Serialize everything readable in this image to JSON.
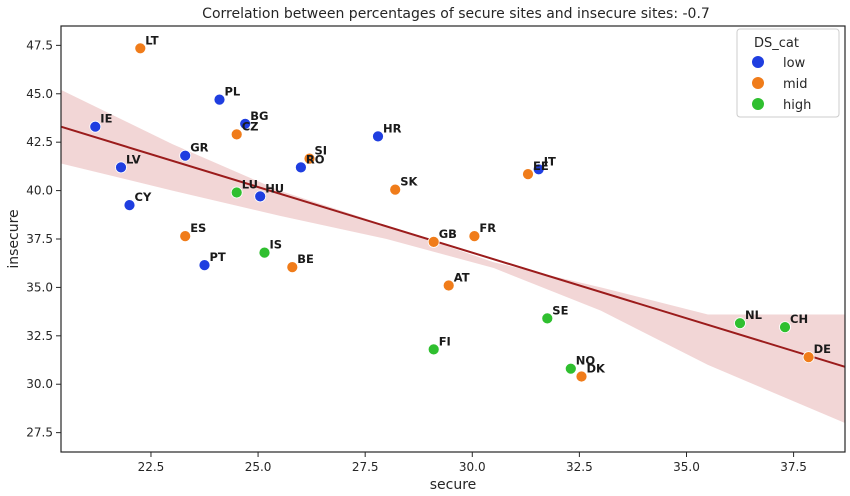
{
  "chart_data": {
    "type": "scatter",
    "title": "Correlation between percentages of secure sites and insecure sites: -0.7",
    "xlabel": "secure",
    "ylabel": "insecure",
    "xlim": [
      20.4,
      38.7
    ],
    "ylim": [
      26.5,
      48.5
    ],
    "xticks": [
      22.5,
      25.0,
      27.5,
      30.0,
      32.5,
      35.0,
      37.5
    ],
    "xtick_labels": [
      "22.5",
      "25.0",
      "27.5",
      "30.0",
      "32.5",
      "35.0",
      "37.5"
    ],
    "yticks": [
      27.5,
      30.0,
      32.5,
      35.0,
      37.5,
      40.0,
      42.5,
      45.0,
      47.5
    ],
    "ytick_labels": [
      "27.5",
      "30.0",
      "32.5",
      "35.0",
      "37.5",
      "40.0",
      "42.5",
      "45.0",
      "47.5"
    ],
    "legend": {
      "title": "DS_cat",
      "position": "top-right",
      "entries": [
        {
          "label": "low",
          "color": "#1f3ee0"
        },
        {
          "label": "mid",
          "color": "#f07c1a"
        },
        {
          "label": "high",
          "color": "#2fbf2f"
        }
      ]
    },
    "regression": {
      "line": [
        [
          20.4,
          43.3
        ],
        [
          38.7,
          30.9
        ]
      ],
      "ci_band": {
        "x": [
          20.4,
          23.0,
          25.5,
          28.0,
          30.5,
          33.0,
          35.5,
          38.7
        ],
        "upper": [
          45.2,
          42.4,
          40.0,
          38.2,
          36.3,
          35.0,
          33.6,
          33.6
        ],
        "lower": [
          41.4,
          40.0,
          38.7,
          37.5,
          36.0,
          33.8,
          31.0,
          28.0
        ]
      },
      "line_color": "#9b1c1c",
      "band_color": "#e8b5b5"
    },
    "points": [
      {
        "label": "LT",
        "x": 22.25,
        "y": 47.35,
        "cat": "mid"
      },
      {
        "label": "PL",
        "x": 24.1,
        "y": 44.7,
        "cat": "low"
      },
      {
        "label": "IE",
        "x": 21.2,
        "y": 43.3,
        "cat": "low"
      },
      {
        "label": "BG",
        "x": 24.7,
        "y": 43.45,
        "cat": "low"
      },
      {
        "label": "CZ",
        "x": 24.5,
        "y": 42.9,
        "cat": "mid"
      },
      {
        "label": "HR",
        "x": 27.8,
        "y": 42.8,
        "cat": "low"
      },
      {
        "label": "GR",
        "x": 23.3,
        "y": 41.8,
        "cat": "low"
      },
      {
        "label": "SI",
        "x": 26.2,
        "y": 41.65,
        "cat": "mid"
      },
      {
        "label": "RO",
        "x": 26.0,
        "y": 41.2,
        "cat": "low"
      },
      {
        "label": "LV",
        "x": 21.8,
        "y": 41.2,
        "cat": "low"
      },
      {
        "label": "IT",
        "x": 31.55,
        "y": 41.1,
        "cat": "low"
      },
      {
        "label": "EE",
        "x": 31.3,
        "y": 40.85,
        "cat": "mid"
      },
      {
        "label": "SK",
        "x": 28.2,
        "y": 40.05,
        "cat": "mid"
      },
      {
        "label": "LU",
        "x": 24.5,
        "y": 39.9,
        "cat": "high"
      },
      {
        "label": "HU",
        "x": 25.05,
        "y": 39.7,
        "cat": "low"
      },
      {
        "label": "CY",
        "x": 22.0,
        "y": 39.25,
        "cat": "low"
      },
      {
        "label": "ES",
        "x": 23.3,
        "y": 37.65,
        "cat": "mid"
      },
      {
        "label": "FR",
        "x": 30.05,
        "y": 37.65,
        "cat": "mid"
      },
      {
        "label": "GB",
        "x": 29.1,
        "y": 37.35,
        "cat": "mid"
      },
      {
        "label": "IS",
        "x": 25.15,
        "y": 36.8,
        "cat": "high"
      },
      {
        "label": "PT",
        "x": 23.75,
        "y": 36.15,
        "cat": "low"
      },
      {
        "label": "BE",
        "x": 25.8,
        "y": 36.05,
        "cat": "mid"
      },
      {
        "label": "AT",
        "x": 29.45,
        "y": 35.1,
        "cat": "mid"
      },
      {
        "label": "SE",
        "x": 31.75,
        "y": 33.4,
        "cat": "high"
      },
      {
        "label": "NL",
        "x": 36.25,
        "y": 33.15,
        "cat": "high"
      },
      {
        "label": "CH",
        "x": 37.3,
        "y": 32.95,
        "cat": "high"
      },
      {
        "label": "FI",
        "x": 29.1,
        "y": 31.8,
        "cat": "high"
      },
      {
        "label": "DE",
        "x": 37.85,
        "y": 31.4,
        "cat": "mid"
      },
      {
        "label": "NO",
        "x": 32.3,
        "y": 30.8,
        "cat": "high"
      },
      {
        "label": "DK",
        "x": 32.55,
        "y": 30.4,
        "cat": "mid"
      }
    ]
  }
}
